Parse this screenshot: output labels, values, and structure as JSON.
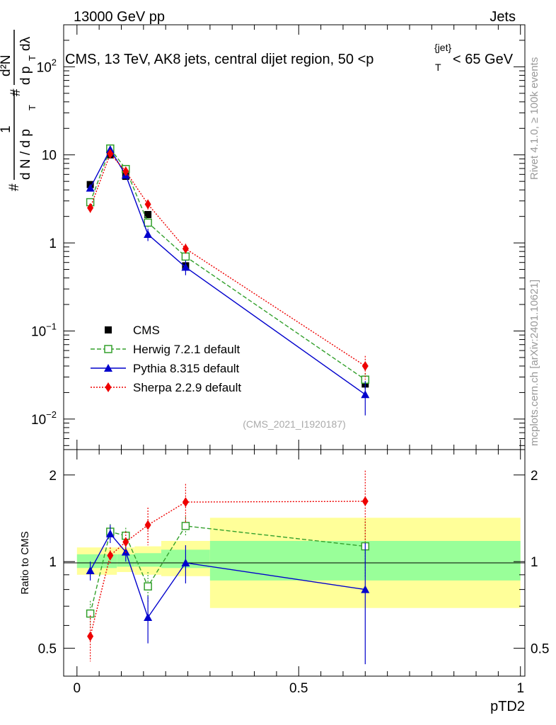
{
  "header": {
    "left": "13000 GeV pp",
    "right": "Jets"
  },
  "side_labels": {
    "rivet": "Rivet 4.1.0, ≥ 100k events",
    "mcplots": "mcplots.cern.ch [arXiv:2401.10621]"
  },
  "watermark": "(CMS_2021_I1920187)",
  "title": {
    "main": "CMS, 13 TeV, AK8 jets, central dijet region, 50 <p",
    "sub": "T",
    "sup": "{jet}",
    "tail": "< 65 GeV"
  },
  "ylabel": {
    "hash1": "#",
    "one": "1",
    "dN": "d N / d p",
    "sub": "T",
    "hash2": "#",
    "d2N": "d²N",
    "dp": "d p",
    "dlambda": "dλ",
    "subT": "T"
  },
  "chart_data": [
    {
      "type": "line",
      "panel": "main",
      "yscale": "log",
      "xlim": [
        -0.03,
        1.01
      ],
      "ylim": [
        0.0045,
        300
      ],
      "yticks": [
        {
          "value": 0.01,
          "base": "10",
          "exp": "−2"
        },
        {
          "value": 0.1,
          "base": "10",
          "exp": "−1"
        },
        {
          "value": 1,
          "base": "1",
          "exp": ""
        },
        {
          "value": 10,
          "base": "10",
          "exp": ""
        },
        {
          "value": 100,
          "base": "10",
          "exp": "2"
        }
      ],
      "series": [
        {
          "name": "CMS",
          "color": "#000000",
          "marker": "square-filled",
          "dash": "none",
          "x": [
            0.03,
            0.075,
            0.11,
            0.16,
            0.245,
            0.65
          ],
          "y": [
            4.6,
            10.0,
            5.7,
            2.1,
            0.55,
            0.025
          ],
          "err": [
            0.25,
            0.45,
            0.3,
            0.12,
            0.04,
            0.003
          ]
        },
        {
          "name": "Herwig 7.2.1 default",
          "color": "#33a02c",
          "marker": "square-open",
          "dash": "6,3",
          "x": [
            0.03,
            0.075,
            0.11,
            0.16,
            0.245,
            0.65
          ],
          "y": [
            2.9,
            11.8,
            6.9,
            1.7,
            0.7,
            0.028
          ],
          "err": [
            0.3,
            0.5,
            0.4,
            0.2,
            0.08,
            0.005
          ]
        },
        {
          "name": "Pythia 8.315 default",
          "color": "#0000cc",
          "marker": "triangle",
          "dash": "none",
          "x": [
            0.03,
            0.075,
            0.11,
            0.16,
            0.245,
            0.65
          ],
          "y": [
            4.2,
            11.5,
            5.9,
            1.25,
            0.53,
            0.019
          ],
          "err": [
            0.3,
            0.6,
            0.4,
            0.2,
            0.1,
            0.008
          ]
        },
        {
          "name": "Sherpa 2.2.9 default",
          "color": "#ee0000",
          "marker": "diamond",
          "dash": "2,2",
          "x": [
            0.03,
            0.075,
            0.11,
            0.16,
            0.245,
            0.65
          ],
          "y": [
            2.5,
            10.3,
            6.5,
            2.75,
            0.86,
            0.04
          ],
          "err": [
            0.3,
            0.5,
            0.4,
            0.35,
            0.12,
            0.012
          ]
        }
      ]
    },
    {
      "type": "line",
      "panel": "ratio",
      "yscale": "log",
      "xlim": [
        -0.03,
        1.01
      ],
      "ylim": [
        0.4,
        2.45
      ],
      "ylabel": "Ratio to CMS",
      "xlabel": "pTD2",
      "xticks": [
        {
          "value": 0,
          "label": "0"
        },
        {
          "value": 0.5,
          "label": "0.5"
        },
        {
          "value": 1,
          "label": "1"
        }
      ],
      "yticks": [
        {
          "value": 0.5,
          "label": "0.5"
        },
        {
          "value": 1,
          "label": "1"
        },
        {
          "value": 2,
          "label": "2"
        }
      ],
      "bands": [
        {
          "x0": 0.0,
          "x1": 0.09,
          "y0": 0.9,
          "y1": 1.12,
          "g0": 0.95,
          "g1": 1.06
        },
        {
          "x0": 0.09,
          "x1": 0.13,
          "y0": 0.92,
          "y1": 1.12,
          "g0": 0.96,
          "g1": 1.06
        },
        {
          "x0": 0.13,
          "x1": 0.19,
          "y0": 0.9,
          "y1": 1.13,
          "g0": 0.96,
          "g1": 1.07
        },
        {
          "x0": 0.19,
          "x1": 0.3,
          "y0": 0.89,
          "y1": 1.18,
          "g0": 0.95,
          "g1": 1.1
        },
        {
          "x0": 0.3,
          "x1": 1.0,
          "y0": 0.69,
          "y1": 1.42,
          "g0": 0.86,
          "g1": 1.18
        }
      ],
      "series": [
        {
          "name": "Herwig 7.2.1 default",
          "color": "#33a02c",
          "marker": "square-open",
          "dash": "6,3",
          "x": [
            0.03,
            0.075,
            0.11,
            0.16,
            0.245,
            0.65
          ],
          "y": [
            0.66,
            1.27,
            1.23,
            0.82,
            1.33,
            1.13
          ],
          "err": [
            0.07,
            0.08,
            0.08,
            0.1,
            0.1,
            0.25
          ]
        },
        {
          "name": "Pythia 8.315 default",
          "color": "#0000cc",
          "marker": "triangle",
          "dash": "none",
          "x": [
            0.03,
            0.075,
            0.11,
            0.16,
            0.245,
            0.65
          ],
          "y": [
            0.93,
            1.25,
            1.08,
            0.64,
            0.99,
            0.8
          ],
          "err": [
            0.07,
            0.09,
            0.08,
            0.12,
            0.15,
            0.36
          ]
        },
        {
          "name": "Sherpa 2.2.9 default",
          "color": "#ee0000",
          "marker": "diamond",
          "dash": "2,2",
          "x": [
            0.03,
            0.075,
            0.11,
            0.16,
            0.245,
            0.65
          ],
          "y": [
            0.55,
            1.05,
            1.17,
            1.34,
            1.61,
            1.62
          ],
          "err": [
            0.1,
            0.07,
            0.1,
            0.2,
            0.25,
            0.45
          ]
        }
      ]
    }
  ]
}
